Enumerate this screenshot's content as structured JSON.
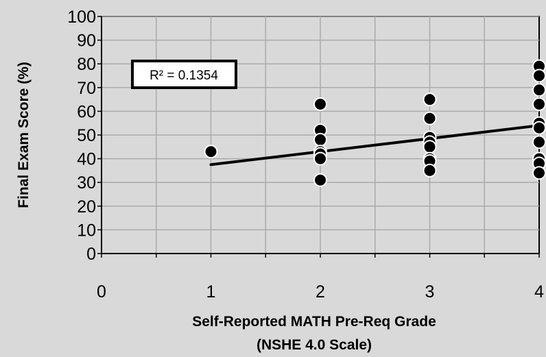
{
  "chart_data": {
    "type": "scatter",
    "title": "",
    "xlabel_lines": [
      "Self-Reported MATH Pre-Req Grade",
      "(NSHE 4.0 Scale)"
    ],
    "ylabel": "Final Exam Score (%)",
    "xlim": [
      0,
      4
    ],
    "ylim": [
      0,
      100
    ],
    "x_ticks": [
      0,
      0.5,
      1,
      1.5,
      2,
      2.5,
      3,
      3.5,
      4
    ],
    "x_tick_labels": [
      {
        "x": 0,
        "label": "0"
      },
      {
        "x": 1,
        "label": "1"
      },
      {
        "x": 2,
        "label": "2"
      },
      {
        "x": 3,
        "label": "3"
      },
      {
        "x": 4,
        "label": "4"
      }
    ],
    "y_ticks": [
      0,
      10,
      20,
      30,
      40,
      50,
      60,
      70,
      80,
      90,
      100
    ],
    "grid": true,
    "points": [
      {
        "x": 1,
        "y": 43
      },
      {
        "x": 2,
        "y": 63
      },
      {
        "x": 2,
        "y": 52
      },
      {
        "x": 2,
        "y": 48
      },
      {
        "x": 2,
        "y": 43
      },
      {
        "x": 2,
        "y": 42
      },
      {
        "x": 2,
        "y": 40
      },
      {
        "x": 2,
        "y": 31
      },
      {
        "x": 3,
        "y": 65
      },
      {
        "x": 3,
        "y": 57
      },
      {
        "x": 3,
        "y": 49
      },
      {
        "x": 3,
        "y": 47
      },
      {
        "x": 3,
        "y": 45
      },
      {
        "x": 3,
        "y": 40
      },
      {
        "x": 3,
        "y": 39
      },
      {
        "x": 3,
        "y": 35
      },
      {
        "x": 4,
        "y": 79
      },
      {
        "x": 4,
        "y": 75
      },
      {
        "x": 4,
        "y": 69
      },
      {
        "x": 4,
        "y": 63
      },
      {
        "x": 4,
        "y": 55
      },
      {
        "x": 4,
        "y": 53
      },
      {
        "x": 4,
        "y": 47
      },
      {
        "x": 4,
        "y": 40
      },
      {
        "x": 4,
        "y": 38
      },
      {
        "x": 4,
        "y": 34
      }
    ],
    "trendline": {
      "type": "linear",
      "x": [
        1,
        4
      ],
      "y": [
        37.5,
        54
      ]
    },
    "r_squared_label": "R² = 0.1354",
    "colors": {
      "background": "#d9d9d9",
      "plot_area": "#d9d9d9",
      "grid": "#aaaaaa",
      "marker_fill": "#000000",
      "marker_edge": "#ffffff",
      "trendline": "#000000"
    }
  }
}
